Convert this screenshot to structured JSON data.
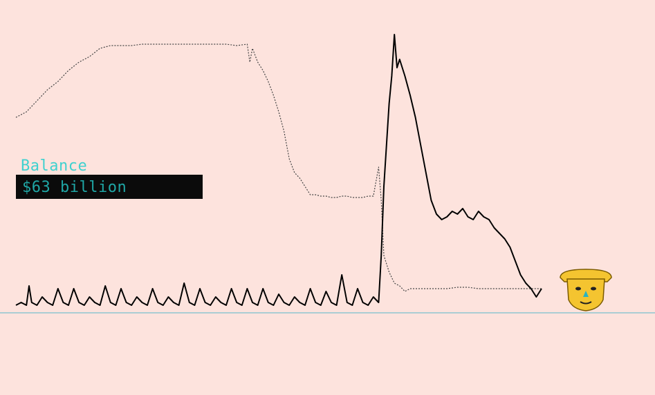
{
  "balance": {
    "label": "Balance",
    "value": "$63 billion"
  },
  "colors": {
    "background": "#fde3dd",
    "solid_line": "#000000",
    "dotted_line": "#444444",
    "baseline": "#8ec6d0",
    "label_cyan": "#3fd1cf",
    "box": "#0b0b0b",
    "mask_yellow": "#f4c430"
  },
  "icons": {
    "character": "golden-mask-face-icon"
  },
  "chart_data": [
    {
      "type": "line",
      "title": "",
      "xlabel": "",
      "ylabel": "",
      "grid": false,
      "xlim": [
        0,
        100
      ],
      "ylim": [
        0,
        100
      ],
      "series": [
        {
          "style": "dotted",
          "x": [
            0,
            2,
            4,
            6,
            8,
            10,
            12,
            14,
            16,
            18,
            20,
            22,
            24,
            26,
            28,
            30,
            32,
            34,
            36,
            38,
            40,
            42,
            44,
            44.5,
            45,
            46,
            47,
            48,
            49,
            50,
            51,
            52,
            53,
            54,
            55,
            56,
            57,
            58,
            59,
            60,
            61,
            62,
            63,
            64,
            65,
            66,
            67,
            68,
            69,
            69.5,
            70,
            71,
            72,
            73,
            74,
            75,
            76,
            78,
            80,
            82,
            84,
            86,
            88,
            90,
            92,
            94,
            96,
            98,
            100
          ],
          "y": [
            70,
            72,
            76,
            80,
            83,
            87,
            90,
            92,
            95,
            96,
            96,
            96,
            96.5,
            96.5,
            96.5,
            96.5,
            96.5,
            96.5,
            96.5,
            96.5,
            96.5,
            96,
            96.5,
            90,
            95,
            90,
            87,
            83,
            78,
            72,
            65,
            55,
            50,
            48,
            45,
            42,
            42,
            41.5,
            41.5,
            41,
            41,
            41.5,
            41.5,
            41,
            41,
            41,
            41.5,
            41.5,
            52,
            40,
            20,
            14,
            10,
            9,
            7,
            8,
            8,
            8,
            8,
            8,
            8.5,
            8.5,
            8,
            8,
            8,
            8,
            8,
            8,
            8
          ]
        },
        {
          "style": "solid",
          "x": [
            0,
            1,
            2,
            2.5,
            3,
            4,
            5,
            6,
            7,
            8,
            9,
            10,
            11,
            12,
            13,
            14,
            15,
            16,
            17,
            18,
            19,
            20,
            21,
            22,
            23,
            24,
            25,
            26,
            27,
            28,
            29,
            30,
            31,
            32,
            33,
            34,
            35,
            36,
            37,
            38,
            39,
            40,
            41,
            42,
            43,
            44,
            45,
            46,
            47,
            48,
            49,
            50,
            51,
            52,
            53,
            54,
            55,
            56,
            57,
            58,
            59,
            60,
            61,
            62,
            63,
            64,
            65,
            66,
            67,
            68,
            69,
            69.5,
            70,
            70.5,
            71,
            71.5,
            72,
            72.5,
            73,
            74,
            75,
            76,
            77,
            78,
            79,
            80,
            81,
            82,
            83,
            84,
            85,
            86,
            87,
            88,
            89,
            90,
            91,
            92,
            93,
            94,
            95,
            96,
            97,
            98,
            99,
            100
          ],
          "y": [
            2,
            3,
            2,
            9,
            3,
            2,
            5,
            3,
            2,
            8,
            3,
            2,
            8,
            3,
            2,
            5,
            3,
            2,
            9,
            3,
            2,
            8,
            3,
            2,
            5,
            3,
            2,
            8,
            3,
            2,
            5,
            3,
            2,
            10,
            3,
            2,
            8,
            3,
            2,
            5,
            3,
            2,
            8,
            3,
            2,
            8,
            3,
            2,
            8,
            3,
            2,
            6,
            3,
            2,
            5,
            3,
            2,
            8,
            3,
            2,
            7,
            3,
            2,
            13,
            3,
            2,
            8,
            3,
            2,
            5,
            3,
            20,
            45,
            60,
            75,
            85,
            100,
            88,
            91,
            85,
            78,
            70,
            60,
            50,
            40,
            35,
            33,
            34,
            36,
            35,
            37,
            34,
            33,
            36,
            34,
            33,
            30,
            28,
            26,
            23,
            18,
            13,
            10,
            8,
            5,
            8
          ]
        }
      ]
    }
  ]
}
